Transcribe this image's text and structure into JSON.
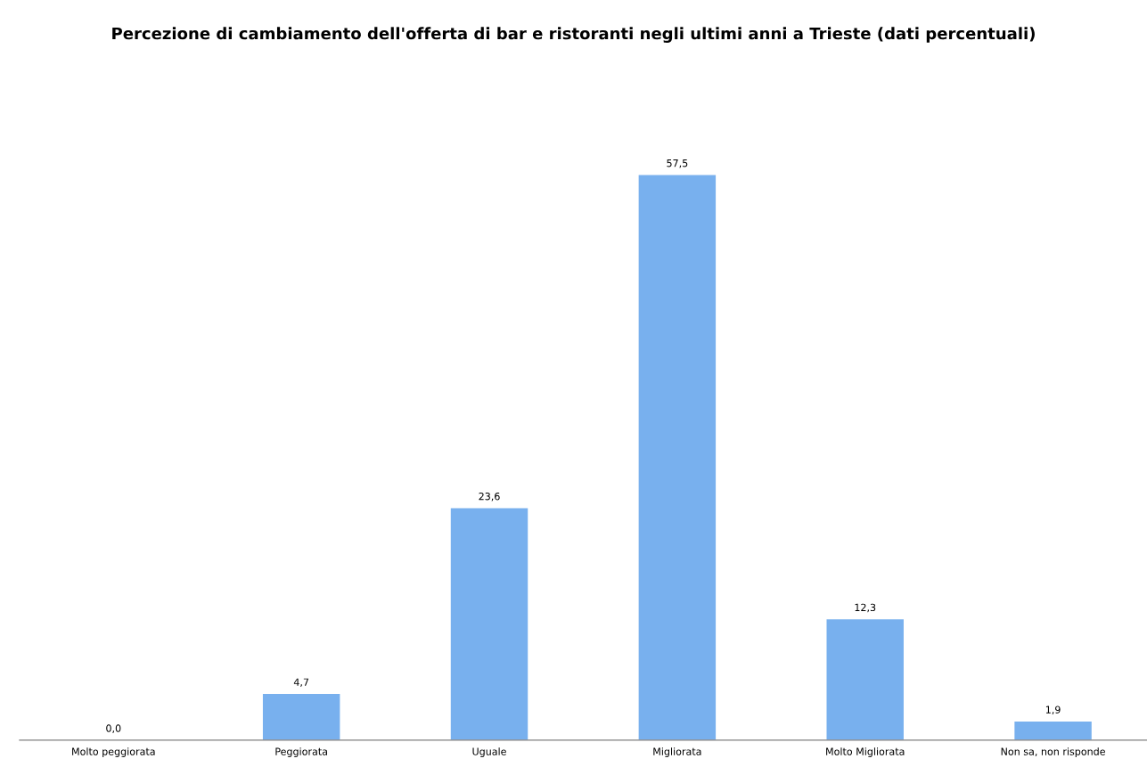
{
  "chart_data": {
    "type": "bar",
    "title": "Percezione di cambiamento dell'offerta di bar e ristoranti negli ultimi anni a Trieste (dati percentuali)",
    "categories": [
      "Molto peggiorata",
      "Peggiorata",
      "Uguale",
      "Migliorata",
      "Molto Migliorata",
      "Non sa, non risponde"
    ],
    "values": [
      0.0,
      4.7,
      23.6,
      57.5,
      12.3,
      1.9
    ],
    "value_labels": [
      "0,0",
      "4,7",
      "23,6",
      "57,5",
      "12,3",
      "1,9"
    ],
    "color": "#78b0ee",
    "grid": false,
    "legend": false
  }
}
